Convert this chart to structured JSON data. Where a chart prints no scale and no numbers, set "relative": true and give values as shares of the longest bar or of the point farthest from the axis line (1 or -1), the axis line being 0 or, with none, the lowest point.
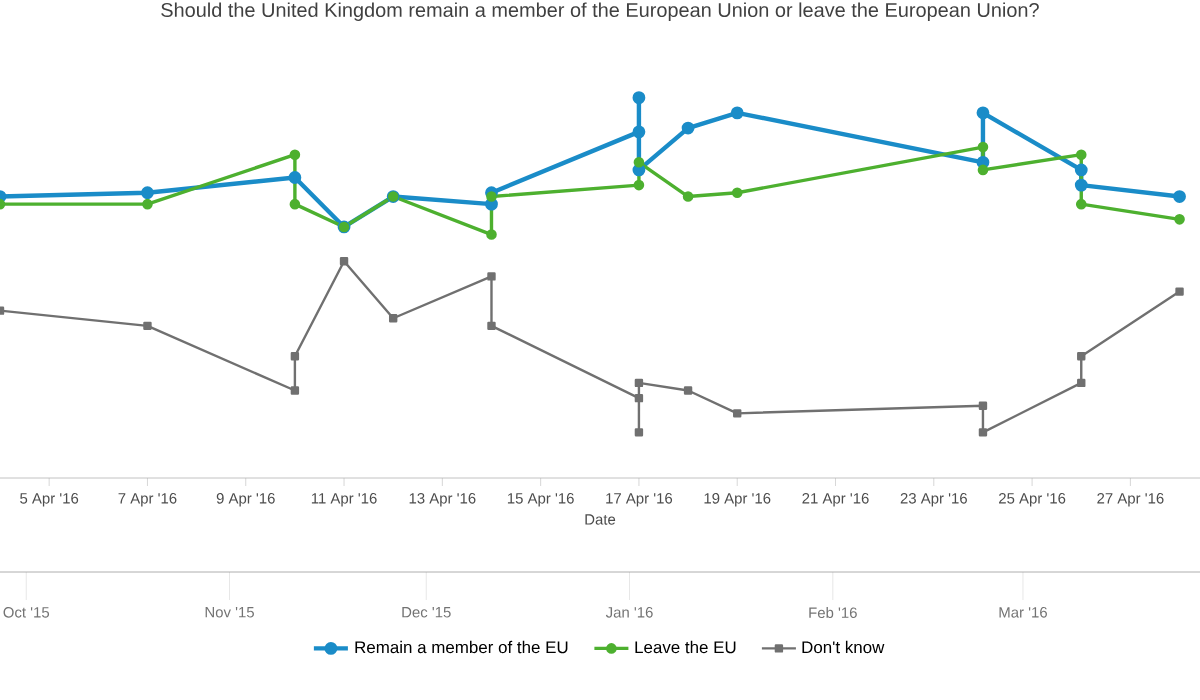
{
  "chart_data": {
    "type": "line",
    "title": "Should the United Kingdom remain a member of the European Union or leave the European Union?",
    "xlabel": "Date",
    "relative": true,
    "legend": "bottom",
    "tick_labels": "x",
    "xlim": [
      "2016-04-04",
      "2016-04-28T10:00"
    ],
    "xticks": [
      {
        "value": "2016-04-05",
        "label": "5 Apr '16"
      },
      {
        "value": "2016-04-07",
        "label": "7 Apr '16"
      },
      {
        "value": "2016-04-09",
        "label": "9 Apr '16"
      },
      {
        "value": "2016-04-11",
        "label": "11 Apr '16"
      },
      {
        "value": "2016-04-13",
        "label": "13 Apr '16"
      },
      {
        "value": "2016-04-15",
        "label": "15 Apr '16"
      },
      {
        "value": "2016-04-17",
        "label": "17 Apr '16"
      },
      {
        "value": "2016-04-19",
        "label": "19 Apr '16"
      },
      {
        "value": "2016-04-21",
        "label": "21 Apr '16"
      },
      {
        "value": "2016-04-23",
        "label": "23 Apr '16"
      },
      {
        "value": "2016-04-25",
        "label": "25 Apr '16"
      },
      {
        "value": "2016-04-27",
        "label": "27 Apr '16"
      }
    ],
    "x2lim": [
      "2015-09-27",
      "2016-03-28"
    ],
    "x2ticks": [
      {
        "value": "2015-10-01",
        "label": "Oct '15"
      },
      {
        "value": "2015-11-01",
        "label": "Nov '15"
      },
      {
        "value": "2015-12-01",
        "label": "Dec '15"
      },
      {
        "value": "2016-01-01",
        "label": "Jan '16"
      },
      {
        "value": "2016-02-01",
        "label": "Feb '16"
      },
      {
        "value": "2016-03-01",
        "label": "Mar '16"
      }
    ],
    "series": [
      {
        "name": "Remain a member of the EU",
        "color": "#1a8cc8",
        "marker": "circle",
        "x": [
          "2016-04-04",
          "2016-04-07",
          "2016-04-10",
          "2016-04-11",
          "2016-04-12",
          "2016-04-14",
          "2016-04-14",
          "2016-04-17",
          "2016-04-17",
          "2016-04-17",
          "2016-04-18",
          "2016-04-19",
          "2016-04-24",
          "2016-04-24",
          "2016-04-26",
          "2016-04-26",
          "2016-04-28"
        ],
        "values": [
          0.74,
          0.75,
          0.79,
          0.66,
          0.74,
          0.72,
          0.75,
          0.91,
          1,
          0.81,
          0.92,
          0.96,
          0.83,
          0.96,
          0.81,
          0.77,
          0.74
        ]
      },
      {
        "name": "Leave the EU",
        "color": "#4db02f",
        "marker": "circle",
        "x": [
          "2016-04-04",
          "2016-04-07",
          "2016-04-10",
          "2016-04-10",
          "2016-04-11",
          "2016-04-12",
          "2016-04-14",
          "2016-04-14",
          "2016-04-17",
          "2016-04-17",
          "2016-04-18",
          "2016-04-19",
          "2016-04-24",
          "2016-04-24",
          "2016-04-26",
          "2016-04-26",
          "2016-04-28"
        ],
        "values": [
          0.72,
          0.72,
          0.85,
          0.72,
          0.66,
          0.74,
          0.64,
          0.74,
          0.77,
          0.83,
          0.74,
          0.75,
          0.87,
          0.81,
          0.85,
          0.72,
          0.68
        ]
      },
      {
        "name": "Don't know",
        "color": "#707070",
        "marker": "square",
        "x": [
          "2016-04-04",
          "2016-04-07",
          "2016-04-10",
          "2016-04-10",
          "2016-04-11",
          "2016-04-12",
          "2016-04-14",
          "2016-04-14",
          "2016-04-17",
          "2016-04-17",
          "2016-04-17",
          "2016-04-18",
          "2016-04-19",
          "2016-04-24",
          "2016-04-24",
          "2016-04-26",
          "2016-04-26",
          "2016-04-28"
        ],
        "values": [
          0.44,
          0.4,
          0.23,
          0.32,
          0.57,
          0.42,
          0.53,
          0.4,
          0.21,
          0.12,
          0.25,
          0.23,
          0.17,
          0.19,
          0.12,
          0.25,
          0.32,
          0.49
        ]
      }
    ]
  }
}
